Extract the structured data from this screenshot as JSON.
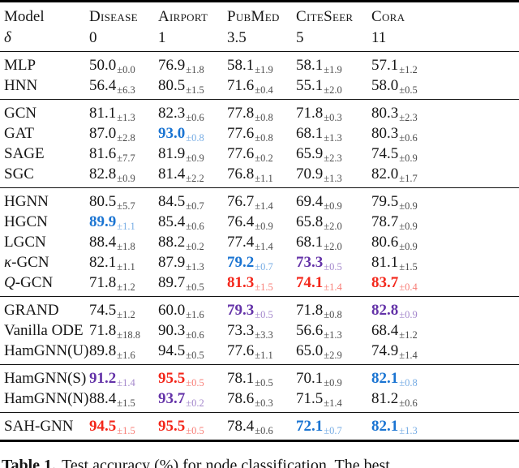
{
  "table": {
    "model_header": "Model",
    "delta_header": "δ",
    "columns": [
      {
        "name": "Disease",
        "delta": "0"
      },
      {
        "name": "Airport",
        "delta": "1"
      },
      {
        "name": "PubMed",
        "delta": "3.5"
      },
      {
        "name": "CiteSeer",
        "delta": "5"
      },
      {
        "name": "Cora",
        "delta": "11"
      }
    ],
    "highlight_colors": {
      "red": "#f3261a",
      "blue": "#1a74d2",
      "violet": "#6433a8",
      "default": "#161616"
    },
    "groups": [
      {
        "rows": [
          {
            "model": "MLP",
            "cells": [
              [
                "50.0",
                "0.0",
                null
              ],
              [
                "76.9",
                "1.8",
                null
              ],
              [
                "58.1",
                "1.9",
                null
              ],
              [
                "58.1",
                "1.9",
                null
              ],
              [
                "57.1",
                "1.2",
                null
              ]
            ]
          },
          {
            "model": "HNN",
            "cells": [
              [
                "56.4",
                "6.3",
                null
              ],
              [
                "80.5",
                "1.5",
                null
              ],
              [
                "71.6",
                "0.4",
                null
              ],
              [
                "55.1",
                "2.0",
                null
              ],
              [
                "58.0",
                "0.5",
                null
              ]
            ]
          }
        ]
      },
      {
        "rows": [
          {
            "model": "GCN",
            "cells": [
              [
                "81.1",
                "1.3",
                null
              ],
              [
                "82.3",
                "0.6",
                null
              ],
              [
                "77.8",
                "0.8",
                null
              ],
              [
                "71.8",
                "0.3",
                null
              ],
              [
                "80.3",
                "2.3",
                null
              ]
            ]
          },
          {
            "model": "GAT",
            "cells": [
              [
                "87.0",
                "2.8",
                null
              ],
              [
                "93.0",
                "0.8",
                "blue"
              ],
              [
                "77.6",
                "0.8",
                null
              ],
              [
                "68.1",
                "1.3",
                null
              ],
              [
                "80.3",
                "0.6",
                null
              ]
            ]
          },
          {
            "model": "SAGE",
            "cells": [
              [
                "81.6",
                "7.7",
                null
              ],
              [
                "81.9",
                "0.9",
                null
              ],
              [
                "77.6",
                "0.2",
                null
              ],
              [
                "65.9",
                "2.3",
                null
              ],
              [
                "74.5",
                "0.9",
                null
              ]
            ]
          },
          {
            "model": "SGC",
            "cells": [
              [
                "82.8",
                "0.9",
                null
              ],
              [
                "81.4",
                "2.2",
                null
              ],
              [
                "76.8",
                "1.1",
                null
              ],
              [
                "70.9",
                "1.3",
                null
              ],
              [
                "82.0",
                "1.7",
                null
              ]
            ]
          }
        ]
      },
      {
        "rows": [
          {
            "model": "HGNN",
            "cells": [
              [
                "80.5",
                "5.7",
                null
              ],
              [
                "84.5",
                "0.7",
                null
              ],
              [
                "76.7",
                "1.4",
                null
              ],
              [
                "69.4",
                "0.9",
                null
              ],
              [
                "79.5",
                "0.9",
                null
              ]
            ]
          },
          {
            "model": "HGCN",
            "cells": [
              [
                "89.9",
                "1.1",
                "blue"
              ],
              [
                "85.4",
                "0.6",
                null
              ],
              [
                "76.4",
                "0.9",
                null
              ],
              [
                "65.8",
                "2.0",
                null
              ],
              [
                "78.7",
                "0.9",
                null
              ]
            ]
          },
          {
            "model": "LGCN",
            "cells": [
              [
                "88.4",
                "1.8",
                null
              ],
              [
                "88.2",
                "0.2",
                null
              ],
              [
                "77.4",
                "1.4",
                null
              ],
              [
                "68.1",
                "2.0",
                null
              ],
              [
                "80.6",
                "0.9",
                null
              ]
            ]
          },
          {
            "model": "κ-GCN",
            "italic_first": true,
            "cells": [
              [
                "82.1",
                "1.1",
                null
              ],
              [
                "87.9",
                "1.3",
                null
              ],
              [
                "79.2",
                "0.7",
                "blue"
              ],
              [
                "73.3",
                "0.5",
                "violet"
              ],
              [
                "81.1",
                "1.5",
                null
              ]
            ]
          },
          {
            "model": "Q-GCN",
            "italic_first": true,
            "cells": [
              [
                "71.8",
                "1.2",
                null
              ],
              [
                "89.7",
                "0.5",
                null
              ],
              [
                "81.3",
                "1.5",
                "red"
              ],
              [
                "74.1",
                "1.4",
                "red"
              ],
              [
                "83.7",
                "0.4",
                "red"
              ]
            ]
          }
        ]
      },
      {
        "rows": [
          {
            "model": "GRAND",
            "cells": [
              [
                "74.5",
                "1.2",
                null
              ],
              [
                "60.0",
                "1.6",
                null
              ],
              [
                "79.3",
                "0.5",
                "violet"
              ],
              [
                "71.8",
                "0.8",
                null
              ],
              [
                "82.8",
                "0.9",
                "violet"
              ]
            ]
          },
          {
            "model": "Vanilla ODE",
            "cells": [
              [
                "71.8",
                "18.8",
                null
              ],
              [
                "90.3",
                "0.6",
                null
              ],
              [
                "73.3",
                "3.3",
                null
              ],
              [
                "56.6",
                "1.3",
                null
              ],
              [
                "68.4",
                "1.2",
                null
              ]
            ]
          },
          {
            "model": "HamGNN(U)",
            "cells": [
              [
                "89.8",
                "1.6",
                null
              ],
              [
                "94.5",
                "0.5",
                null
              ],
              [
                "77.6",
                "1.1",
                null
              ],
              [
                "65.0",
                "2.9",
                null
              ],
              [
                "74.9",
                "1.4",
                null
              ]
            ]
          }
        ]
      },
      {
        "rows": [
          {
            "model": "HamGNN(S)",
            "cells": [
              [
                "91.2",
                "1.4",
                "violet"
              ],
              [
                "95.5",
                "0.5",
                "red"
              ],
              [
                "78.1",
                "0.5",
                null
              ],
              [
                "70.1",
                "0.9",
                null
              ],
              [
                "82.1",
                "0.8",
                "blue"
              ]
            ]
          },
          {
            "model": "HamGNN(N)",
            "cells": [
              [
                "88.4",
                "1.5",
                null
              ],
              [
                "93.7",
                "0.2",
                "violet"
              ],
              [
                "78.6",
                "0.3",
                null
              ],
              [
                "71.5",
                "1.4",
                null
              ],
              [
                "81.2",
                "0.6",
                null
              ]
            ]
          }
        ]
      },
      {
        "rows": [
          {
            "model": "SAH-GNN",
            "cells": [
              [
                "94.5",
                "1.5",
                "red"
              ],
              [
                "95.5",
                "0.5",
                "red"
              ],
              [
                "78.4",
                "0.6",
                null
              ],
              [
                "72.1",
                "0.7",
                "blue"
              ],
              [
                "82.1",
                "1.3",
                "blue"
              ]
            ]
          }
        ]
      }
    ]
  },
  "caption": {
    "prefix": "Table 1.",
    "text": "Test accuracy (%) for node classification. The best"
  }
}
